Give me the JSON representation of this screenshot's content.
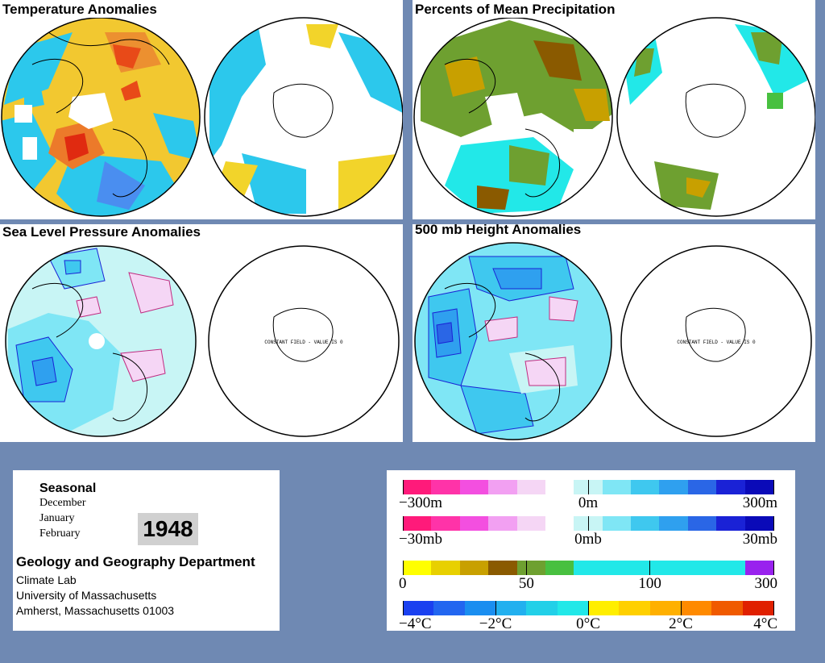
{
  "panels": {
    "temperature": {
      "title": "Temperature Anomalies"
    },
    "precipitation": {
      "title": "Percents of Mean Precipitation"
    },
    "slp": {
      "title": "Sea Level Pressure Anomalies",
      "note": "CONSTANT FIELD - VALUE IS 0"
    },
    "height": {
      "title": "500 mb Height Anomalies",
      "note": "CONSTANT FIELD - VALUE IS 0"
    }
  },
  "info": {
    "period": "Seasonal",
    "months": [
      "December",
      "January",
      "February"
    ],
    "year": "1948",
    "department": "Geology and Geography Department",
    "address": [
      "Climate Lab",
      "University of Massachusetts",
      "Amherst, Massachusetts 01003"
    ]
  },
  "legends": [
    {
      "name": "height-scale",
      "colors": [
        "#ff1a7a",
        "#ff33a8",
        "#f34fe0",
        "#f2a0f2",
        "#f5d6f5",
        "#ffffff",
        "#c8f5f5",
        "#7fe6f5",
        "#3fc8ef",
        "#2fa0ef",
        "#2a66e6",
        "#1a22d6",
        "#0a0ab8"
      ],
      "ticks": [
        {
          "label": "−300m",
          "align": "left"
        },
        {
          "label": "0m",
          "align": "center"
        },
        {
          "label": "300m",
          "align": "right"
        }
      ]
    },
    {
      "name": "pressure-scale",
      "colors": [
        "#ff1a7a",
        "#ff33a8",
        "#f34fe0",
        "#f2a0f2",
        "#f5d6f5",
        "#ffffff",
        "#c8f5f5",
        "#7fe6f5",
        "#3fc8ef",
        "#2fa0ef",
        "#2a66e6",
        "#1a22d6",
        "#0a0ab8"
      ],
      "ticks": [
        {
          "label": "−30mb",
          "align": "left"
        },
        {
          "label": "0mb",
          "align": "center"
        },
        {
          "label": "30mb",
          "align": "right"
        }
      ]
    },
    {
      "name": "precip-scale",
      "colors": [
        "#ffff00",
        "#e8d000",
        "#c8a000",
        "#8a5a00",
        "#6ea030",
        "#48c040",
        "#22e8e8",
        "#22e8e8",
        "#22e8e8",
        "#22e8e8",
        "#22e8e8",
        "#22e8e8",
        "#9922ee"
      ],
      "ticks": [
        {
          "label": "0",
          "align": "left"
        },
        {
          "label": "50",
          "align": "center"
        },
        {
          "label": "100",
          "align": "center"
        },
        {
          "label": "300",
          "align": "right"
        }
      ]
    },
    {
      "name": "temp-scale",
      "colors": [
        "#1a40f0",
        "#2266f0",
        "#1a8ef0",
        "#22b0ef",
        "#22d0e8",
        "#22e8e8",
        "#ffee00",
        "#ffd000",
        "#ffb000",
        "#ff8a00",
        "#f05a00",
        "#e02000"
      ],
      "ticks": [
        {
          "label": "−4°C",
          "align": "left"
        },
        {
          "label": "−2°C",
          "align": "center"
        },
        {
          "label": "0°C",
          "align": "center"
        },
        {
          "label": "2°C",
          "align": "center"
        },
        {
          "label": "4°C",
          "align": "right"
        }
      ]
    }
  ]
}
